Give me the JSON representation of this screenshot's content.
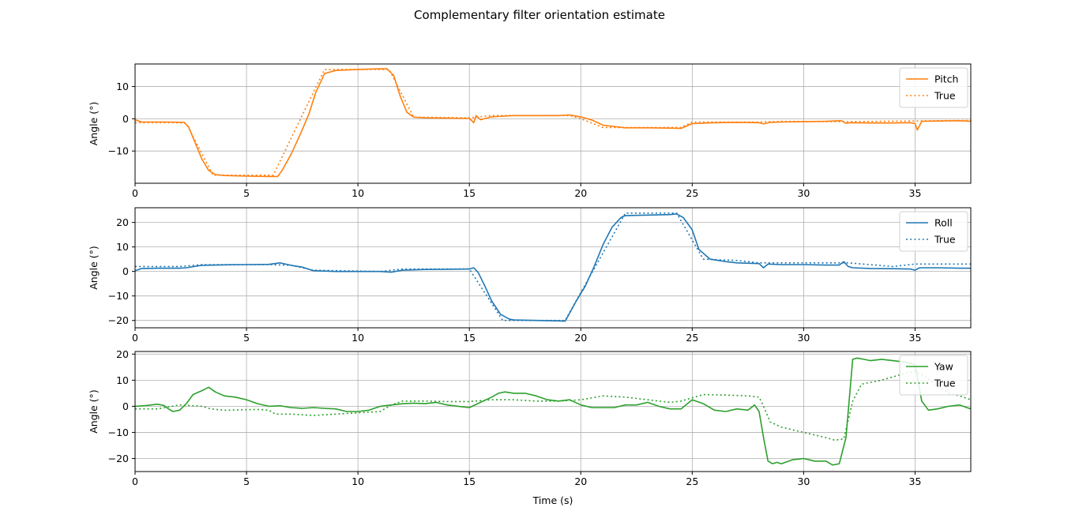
{
  "figure": {
    "title": "Complementary filter orientation estimate",
    "xlabel": "Time (s)"
  },
  "chart_data": [
    {
      "type": "line",
      "ylabel": "Angle (°)",
      "xlim": [
        0,
        37.5
      ],
      "ylim": [
        -20,
        17
      ],
      "xticks": [
        0,
        5,
        10,
        15,
        20,
        25,
        30,
        35
      ],
      "yticks": [
        -10,
        0,
        10
      ],
      "grid": true,
      "legend": "top-right",
      "series": [
        {
          "name": "Pitch",
          "color": "#ff7f0e",
          "dash": "solid",
          "x": [
            0,
            0.3,
            1.5,
            2.2,
            2.4,
            2.7,
            3.0,
            3.3,
            3.6,
            4.0,
            5.0,
            6.0,
            6.4,
            6.6,
            7.0,
            7.4,
            7.8,
            8.1,
            8.5,
            9.0,
            10.0,
            11.0,
            11.3,
            11.6,
            11.9,
            12.2,
            12.5,
            13.0,
            14.0,
            15.0,
            15.2,
            15.3,
            15.5,
            16.0,
            17.0,
            18.0,
            19.0,
            19.5,
            20.0,
            20.5,
            21.0,
            22.0,
            23.0,
            24.0,
            24.5,
            25.0,
            26.0,
            27.0,
            28.0,
            28.2,
            28.5,
            29.0,
            30.0,
            31.0,
            31.7,
            31.9,
            32.1,
            33.0,
            34.0,
            34.8,
            35.0,
            35.1,
            35.3,
            36.0,
            37.0,
            37.5
          ],
          "y": [
            -0.3,
            -1.0,
            -1.0,
            -1.1,
            -2.5,
            -7.5,
            -12.5,
            -16.0,
            -17.3,
            -17.6,
            -17.8,
            -17.9,
            -17.9,
            -16.0,
            -11.0,
            -5.0,
            1.5,
            8.0,
            14.0,
            15.0,
            15.3,
            15.5,
            15.5,
            13.5,
            7.0,
            2.0,
            0.5,
            0.3,
            0.2,
            0.1,
            -1.2,
            1.0,
            -0.3,
            0.6,
            1.0,
            1.0,
            1.0,
            1.2,
            0.6,
            -0.4,
            -2.0,
            -2.8,
            -2.8,
            -2.9,
            -3.0,
            -1.5,
            -1.2,
            -1.1,
            -1.2,
            -1.6,
            -1.1,
            -1.0,
            -0.9,
            -0.8,
            -0.6,
            -1.4,
            -1.2,
            -1.3,
            -1.3,
            -1.2,
            -1.5,
            -3.5,
            -0.8,
            -0.7,
            -0.6,
            -0.8
          ]
        },
        {
          "name": "True",
          "color": "#ff7f0e",
          "dash": "dotted",
          "x": [
            0,
            2.0,
            2.3,
            3.5,
            6.2,
            8.5,
            11.4,
            12.5,
            15.0,
            16.0,
            19.5,
            20.0,
            21.0,
            24.5,
            25.0,
            28.0,
            29.0,
            31.7,
            37.5
          ],
          "y": [
            -1.2,
            -1.2,
            -1.5,
            -17.5,
            -17.5,
            15.3,
            15.3,
            0.5,
            0.3,
            1.0,
            1.0,
            0.0,
            -2.7,
            -2.7,
            -1.0,
            -1.0,
            -0.8,
            -0.9,
            -0.5
          ]
        }
      ]
    },
    {
      "type": "line",
      "ylabel": "Angle (°)",
      "xlim": [
        0,
        37.5
      ],
      "ylim": [
        -23,
        26
      ],
      "xticks": [
        0,
        5,
        10,
        15,
        20,
        25,
        30,
        35
      ],
      "yticks": [
        -20,
        -10,
        0,
        10,
        20
      ],
      "grid": true,
      "legend": "top-right",
      "series": [
        {
          "name": "Roll",
          "color": "#1f77b4",
          "dash": "solid",
          "x": [
            0,
            0.3,
            1.0,
            2.0,
            2.3,
            3.0,
            4.0,
            5.0,
            6.0,
            6.5,
            7.0,
            7.5,
            8.0,
            9.0,
            10.0,
            11.0,
            11.5,
            12.0,
            13.0,
            14.0,
            15.0,
            15.2,
            15.4,
            15.7,
            16.0,
            16.4,
            16.8,
            17.0,
            18.0,
            19.0,
            19.3,
            19.5,
            19.8,
            20.2,
            20.6,
            21.0,
            21.4,
            21.8,
            22.0,
            23.0,
            24.0,
            24.3,
            24.6,
            25.0,
            25.3,
            25.8,
            26.5,
            27.0,
            28.0,
            28.2,
            28.4,
            29.0,
            30.0,
            31.0,
            31.6,
            31.8,
            32.0,
            32.2,
            33.0,
            34.0,
            34.8,
            35.0,
            35.2,
            36.0,
            37.0,
            37.5
          ],
          "y": [
            0.3,
            1.2,
            1.3,
            1.3,
            1.5,
            2.5,
            2.7,
            2.8,
            2.9,
            3.5,
            2.5,
            1.8,
            0.3,
            0.0,
            0.0,
            0.0,
            -0.3,
            0.5,
            0.8,
            0.9,
            1.0,
            1.5,
            -0.5,
            -6.0,
            -12.0,
            -17.5,
            -19.5,
            -19.8,
            -20.0,
            -20.2,
            -20.3,
            -17.0,
            -12.0,
            -6.0,
            2.0,
            11.0,
            18.0,
            22.0,
            22.8,
            23.0,
            23.2,
            23.5,
            22.0,
            17.0,
            9.0,
            5.0,
            4.0,
            3.5,
            3.2,
            1.5,
            3.0,
            2.8,
            2.8,
            2.6,
            2.6,
            4.0,
            2.0,
            1.5,
            1.2,
            1.1,
            1.0,
            0.5,
            1.5,
            1.5,
            1.3,
            1.3
          ]
        },
        {
          "name": "True",
          "color": "#1f77b4",
          "dash": "dotted",
          "x": [
            0,
            2.0,
            3.0,
            5.0,
            6.0,
            7.0,
            8.0,
            11.0,
            12.0,
            15.0,
            16.5,
            19.3,
            22.0,
            24.3,
            25.5,
            27.0,
            28.0,
            32.0,
            34.0,
            35.0,
            37.5
          ],
          "y": [
            2.0,
            2.0,
            2.8,
            2.8,
            2.8,
            2.5,
            0.5,
            0.0,
            1.0,
            1.0,
            -20.0,
            -20.0,
            23.8,
            23.8,
            5.0,
            4.5,
            3.5,
            3.5,
            2.0,
            3.0,
            3.0
          ]
        }
      ]
    },
    {
      "type": "line",
      "ylabel": "Angle (°)",
      "xlim": [
        0,
        37.5
      ],
      "ylim": [
        -25,
        21
      ],
      "xticks": [
        0,
        5,
        10,
        15,
        20,
        25,
        30,
        35
      ],
      "yticks": [
        -20,
        -10,
        0,
        10,
        20
      ],
      "grid": true,
      "legend": "top-right",
      "series": [
        {
          "name": "Yaw",
          "color": "#2ca02c",
          "dash": "solid",
          "x": [
            0,
            0.5,
            1.0,
            1.3,
            1.5,
            1.7,
            2.0,
            2.3,
            2.6,
            3.0,
            3.3,
            3.6,
            4.0,
            4.5,
            5.0,
            5.5,
            6.0,
            6.5,
            7.0,
            7.5,
            8.0,
            8.5,
            9.0,
            9.5,
            10.0,
            10.5,
            11.0,
            11.5,
            12.0,
            12.5,
            13.0,
            13.5,
            14.0,
            14.5,
            15.0,
            15.5,
            16.0,
            16.3,
            16.6,
            17.0,
            17.5,
            18.0,
            18.5,
            19.0,
            19.5,
            20.0,
            20.5,
            21.0,
            21.5,
            22.0,
            22.5,
            23.0,
            23.5,
            24.0,
            24.5,
            25.0,
            25.5,
            26.0,
            26.5,
            27.0,
            27.5,
            27.8,
            28.0,
            28.2,
            28.4,
            28.6,
            28.8,
            29.0,
            29.5,
            30.0,
            30.5,
            31.0,
            31.3,
            31.6,
            31.9,
            32.2,
            32.4,
            32.7,
            33.0,
            33.5,
            34.0,
            34.5,
            35.0,
            35.3,
            35.6,
            36.0,
            36.5,
            37.0,
            37.5
          ],
          "y": [
            0.0,
            0.3,
            0.8,
            0.3,
            -1.0,
            -2.0,
            -1.5,
            1.0,
            4.5,
            6.0,
            7.3,
            5.5,
            4.0,
            3.5,
            2.5,
            1.0,
            0.0,
            0.2,
            -0.5,
            -0.8,
            -0.5,
            -0.8,
            -1.0,
            -2.0,
            -2.0,
            -1.5,
            0.0,
            0.5,
            1.0,
            1.2,
            1.0,
            1.5,
            0.5,
            0.0,
            -0.5,
            1.5,
            3.5,
            5.0,
            5.5,
            5.0,
            5.0,
            4.0,
            2.5,
            2.0,
            2.5,
            0.5,
            -0.5,
            -0.5,
            -0.5,
            0.5,
            0.5,
            1.5,
            0.0,
            -1.0,
            -1.0,
            2.5,
            1.0,
            -1.5,
            -2.0,
            -1.0,
            -1.5,
            0.5,
            -2.0,
            -12.0,
            -21.0,
            -22.0,
            -21.5,
            -22.0,
            -20.5,
            -20.0,
            -21.0,
            -21.0,
            -22.5,
            -22.0,
            -12.0,
            18.0,
            18.5,
            18.0,
            17.5,
            18.0,
            17.5,
            17.0,
            16.0,
            2.0,
            -1.5,
            -1.0,
            0.0,
            0.5,
            -1.0
          ]
        },
        {
          "name": "True",
          "color": "#2ca02c",
          "dash": "dotted",
          "x": [
            0,
            1.0,
            2.0,
            3.0,
            3.4,
            4.0,
            5.5,
            6.0,
            6.3,
            7.0,
            8.0,
            9.0,
            10.0,
            11.0,
            11.5,
            12.0,
            13.0,
            14.0,
            15.0,
            16.0,
            17.0,
            18.0,
            19.0,
            20.0,
            21.0,
            22.0,
            23.0,
            24.0,
            24.5,
            25.5,
            26.5,
            27.5,
            28.0,
            28.2,
            28.5,
            29.0,
            30.0,
            31.0,
            31.4,
            31.8,
            32.2,
            32.6,
            33.5,
            34.5,
            35.0,
            35.5,
            36.5,
            37.0,
            37.5
          ],
          "y": [
            -1.0,
            -1.0,
            0.5,
            0.0,
            -1.0,
            -1.5,
            -1.2,
            -1.5,
            -3.0,
            -3.0,
            -3.5,
            -3.0,
            -2.5,
            -2.0,
            0.5,
            2.0,
            2.0,
            1.8,
            1.8,
            2.5,
            2.5,
            2.0,
            2.0,
            2.5,
            4.0,
            3.5,
            2.5,
            1.5,
            2.0,
            4.5,
            4.3,
            4.0,
            3.5,
            0.0,
            -6.0,
            -8.0,
            -10.0,
            -12.0,
            -13.0,
            -12.5,
            2.0,
            8.5,
            10.0,
            12.5,
            13.5,
            11.0,
            5.0,
            4.0,
            2.5
          ]
        }
      ]
    }
  ]
}
